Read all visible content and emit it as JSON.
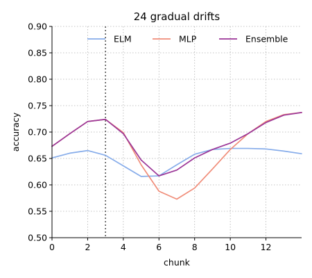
{
  "chart_data": {
    "type": "line",
    "title": "24 gradual drifts",
    "xlabel": "chunk",
    "ylabel": "accuracy",
    "xlim": [
      0,
      14
    ],
    "ylim": [
      0.5,
      0.9
    ],
    "xticks": [
      0,
      2,
      4,
      6,
      8,
      10,
      12
    ],
    "yticks": [
      0.5,
      0.55,
      0.6,
      0.65,
      0.7,
      0.75,
      0.8,
      0.85,
      0.9
    ],
    "grid": true,
    "legend_position": "top",
    "drift_marker_x": 3,
    "x": [
      0,
      1,
      2,
      3,
      4,
      5,
      6,
      7,
      8,
      9,
      10,
      11,
      12,
      13,
      14
    ],
    "series": [
      {
        "name": "ELM",
        "color": "#86acea",
        "values": [
          0.651,
          0.66,
          0.665,
          0.656,
          0.636,
          0.616,
          0.617,
          0.638,
          0.658,
          0.667,
          0.669,
          0.669,
          0.668,
          0.664,
          0.659
        ]
      },
      {
        "name": "MLP",
        "color": "#f08c78",
        "values": [
          0.673,
          0.697,
          0.72,
          0.724,
          0.699,
          0.638,
          0.588,
          0.573,
          0.594,
          0.63,
          0.667,
          0.697,
          0.72,
          0.733,
          0.737
        ]
      },
      {
        "name": "Ensemble",
        "color": "#9b3597",
        "values": [
          0.673,
          0.697,
          0.72,
          0.724,
          0.697,
          0.647,
          0.617,
          0.628,
          0.651,
          0.667,
          0.679,
          0.697,
          0.718,
          0.732,
          0.737
        ]
      }
    ]
  }
}
